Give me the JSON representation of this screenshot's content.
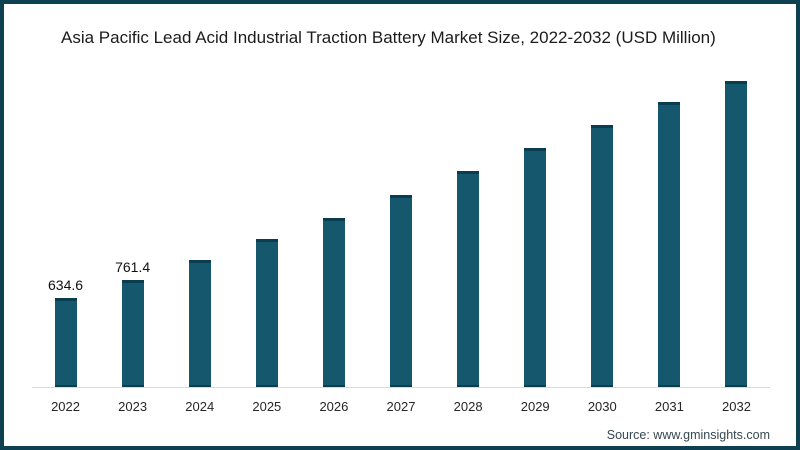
{
  "page": {
    "title": "Asia Pacific Lead Acid Industrial Traction Battery Market Size, 2022-2032 (USD Million)",
    "source": "Source: www.gminsights.com"
  },
  "colors": {
    "bar_fill": "#15586E",
    "bar_cap": "#0B3D50",
    "frame_border": "#0D4152",
    "axis_line": "#D9D9D9",
    "title_text": "#1C1C1C",
    "value_label_text": "#111111",
    "year_label_text": "#262626",
    "source_text": "#374751"
  },
  "chart_data": {
    "type": "bar",
    "title": "Asia Pacific Lead Acid Industrial Traction Battery Market Size, 2022-2032 (USD Million)",
    "categories": [
      "2022",
      "2023",
      "2024",
      "2025",
      "2026",
      "2027",
      "2028",
      "2029",
      "2030",
      "2031",
      "2032"
    ],
    "values": [
      634.6,
      761.4,
      910,
      1055,
      1210,
      1370,
      1540,
      1710,
      1870,
      2035,
      2185
    ],
    "visible_value_labels": [
      "634.6",
      "761.4",
      "",
      "",
      "",
      "",
      "",
      "",
      "",
      "",
      ""
    ],
    "xlabel": "",
    "ylabel": "USD Million",
    "ylim": [
      0,
      2185
    ],
    "grid": false,
    "legend": "none",
    "bar_color": "#15586E",
    "source": "Source: www.gminsights.com"
  }
}
